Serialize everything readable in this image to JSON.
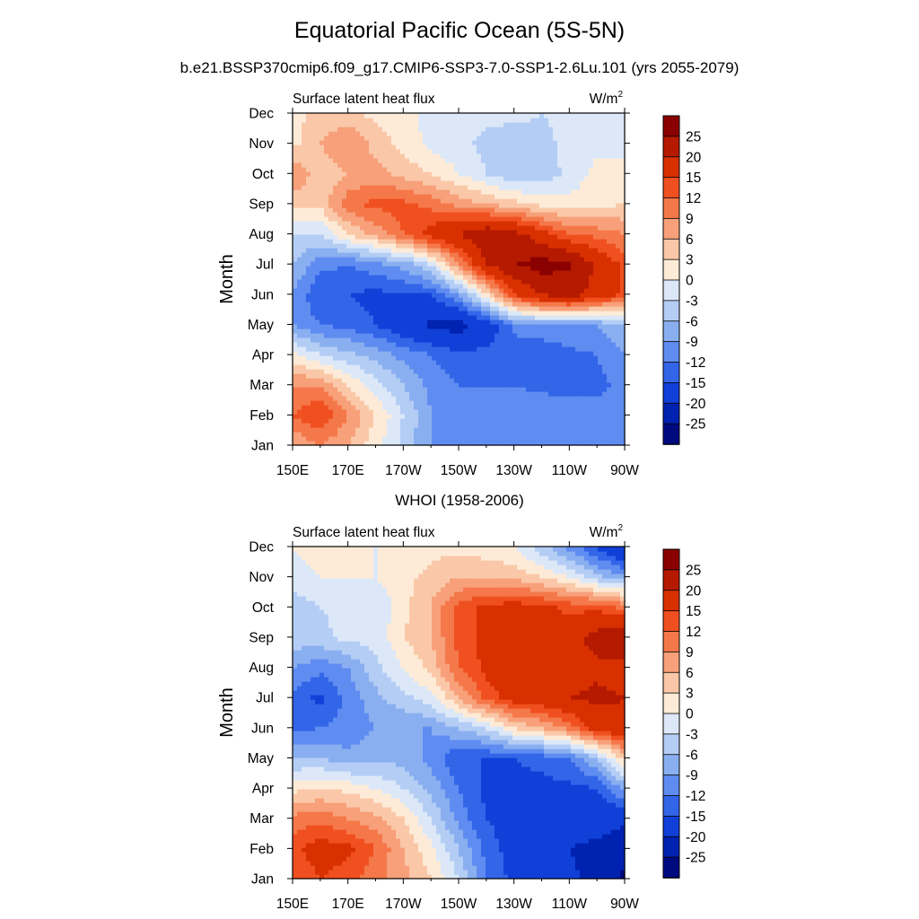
{
  "figure": {
    "title": "Equatorial Pacific Ocean (5S-5N)",
    "subtitle": "b.e21.BSSP370cmip6.f09_g17.CMIP6-SSP3-7.0-SSP1-2.6Lu.101 (yrs 2055-2079)",
    "second_title": "WHOI (1958-2006)"
  },
  "colorbar": {
    "levels": [
      "25",
      "20",
      "15",
      "12",
      "9",
      "6",
      "3",
      "0",
      "-3",
      "-6",
      "-9",
      "-12",
      "-15",
      "-20",
      "-25"
    ],
    "colors": [
      "#8b0000",
      "#b51a00",
      "#d93000",
      "#f05020",
      "#f5784a",
      "#f7a07a",
      "#fac8a8",
      "#fdebd8",
      "#dce8f8",
      "#b4cdf5",
      "#8aaff0",
      "#5f8cf0",
      "#3265e8",
      "#1040d8",
      "#0022b0",
      "#000a80"
    ]
  },
  "chart_data": [
    {
      "type": "heatmap",
      "title": "Surface latent heat flux",
      "units": "W/m²",
      "units_base": "W/m",
      "units_sup": "2",
      "xlabel": "",
      "ylabel": "Month",
      "x_ticks": [
        "150E",
        "170E",
        "170W",
        "150W",
        "130W",
        "110W",
        "90W"
      ],
      "y_ticks": [
        "Jan",
        "Feb",
        "Mar",
        "Apr",
        "May",
        "Jun",
        "Jul",
        "Aug",
        "Sep",
        "Oct",
        "Nov",
        "Dec"
      ],
      "xlim_deg_east": [
        150,
        270
      ],
      "grid_x_deg_east": [
        150,
        160,
        170,
        180,
        190,
        200,
        210,
        220,
        230,
        240,
        250,
        260,
        270
      ],
      "grid_months": [
        "Jan",
        "Feb",
        "Mar",
        "Apr",
        "May",
        "Jun",
        "Jul",
        "Aug",
        "Sep",
        "Oct",
        "Nov",
        "Dec"
      ],
      "values": [
        [
          6,
          9,
          6,
          1,
          -4,
          -9,
          -10,
          -10,
          -10,
          -9,
          -9,
          -9,
          -11
        ],
        [
          12,
          15,
          9,
          3,
          -3,
          -9,
          -10,
          -9,
          -10,
          -9,
          -9,
          -10,
          -11
        ],
        [
          9,
          9,
          3,
          -2,
          -6,
          -10,
          -12,
          -12,
          -12,
          -13,
          -14,
          -13,
          -11
        ],
        [
          1,
          -3,
          -5,
          -7,
          -10,
          -12,
          -14,
          -14,
          -14,
          -15,
          -13,
          -12,
          -9
        ],
        [
          -9,
          -12,
          -13,
          -15,
          -18,
          -21,
          -22,
          -18,
          -11,
          -9,
          -9,
          -9,
          -6
        ],
        [
          -9,
          -15,
          -15,
          -16,
          -15,
          -15,
          -9,
          2,
          15,
          20,
          22,
          18,
          14
        ],
        [
          -6,
          -11,
          -12,
          -10,
          -8,
          -3,
          9,
          20,
          25,
          27,
          26,
          19,
          14
        ],
        [
          -3,
          -3,
          3,
          7,
          12,
          17,
          20,
          24,
          22,
          17,
          12,
          11,
          9
        ],
        [
          4,
          4,
          11,
          13,
          13,
          11,
          8,
          6,
          4,
          2,
          1,
          2,
          3
        ],
        [
          9,
          4,
          6,
          7,
          5,
          3,
          0,
          -3,
          -5,
          -5,
          -2,
          1,
          1
        ],
        [
          2,
          6,
          9,
          5,
          2,
          -1,
          -2,
          -4,
          -5,
          -4,
          -2,
          -1,
          -1
        ],
        [
          2,
          4,
          4,
          2,
          1,
          -1,
          -2,
          -2,
          -2,
          -3,
          -2,
          -1,
          -1
        ]
      ]
    },
    {
      "type": "heatmap",
      "title": "Surface latent heat flux",
      "units": "W/m²",
      "units_base": "W/m",
      "units_sup": "2",
      "xlabel": "",
      "ylabel": "Month",
      "x_ticks": [
        "150E",
        "170E",
        "170W",
        "150W",
        "130W",
        "110W",
        "90W"
      ],
      "y_ticks": [
        "Jan",
        "Feb",
        "Mar",
        "Apr",
        "May",
        "Jun",
        "Jul",
        "Aug",
        "Sep",
        "Oct",
        "Nov",
        "Dec"
      ],
      "xlim_deg_east": [
        150,
        270
      ],
      "grid_x_deg_east": [
        150,
        160,
        170,
        180,
        190,
        200,
        210,
        220,
        230,
        240,
        250,
        260,
        270
      ],
      "grid_months": [
        "Jan",
        "Feb",
        "Mar",
        "Apr",
        "May",
        "Jun",
        "Jul",
        "Aug",
        "Sep",
        "Oct",
        "Nov",
        "Dec"
      ],
      "values": [
        [
          12,
          15,
          13,
          10,
          7,
          3,
          -3,
          -12,
          -16,
          -19,
          -19,
          -22,
          -26
        ],
        [
          14,
          17,
          16,
          12,
          6,
          1,
          -6,
          -13,
          -17,
          -18,
          -20,
          -21,
          -23
        ],
        [
          10,
          11,
          9,
          7,
          3,
          -3,
          -10,
          -15,
          -17,
          -17,
          -18,
          -18,
          -19
        ],
        [
          2,
          3,
          2,
          0,
          -3,
          -7,
          -12,
          -16,
          -16,
          -16,
          -16,
          -15,
          -8
        ],
        [
          -6,
          -6,
          -8,
          -7,
          -7,
          -10,
          -15,
          -15,
          -15,
          -14,
          -12,
          -6,
          4
        ],
        [
          -13,
          -12,
          -11,
          -9,
          -9,
          -9,
          -6,
          -3,
          3,
          6,
          10,
          17,
          19
        ],
        [
          -13,
          -16,
          -11,
          -7,
          -4,
          -1,
          6,
          13,
          17,
          18,
          20,
          21,
          20
        ],
        [
          -9,
          -11,
          -9,
          -4,
          0,
          4,
          12,
          16,
          19,
          19,
          18,
          19,
          18
        ],
        [
          -4,
          -4,
          -2,
          -2,
          3,
          6,
          13,
          16,
          18,
          18,
          18,
          22,
          24
        ],
        [
          -5,
          -3,
          -2,
          -3,
          2,
          6,
          13,
          16,
          17,
          16,
          14,
          14,
          11
        ],
        [
          -1,
          0,
          0,
          0,
          2,
          4,
          6,
          6,
          5,
          3,
          0,
          -5,
          -8
        ],
        [
          0,
          1,
          1,
          0,
          1,
          2,
          2,
          1,
          0,
          -5,
          -10,
          -16,
          -21
        ]
      ]
    }
  ]
}
